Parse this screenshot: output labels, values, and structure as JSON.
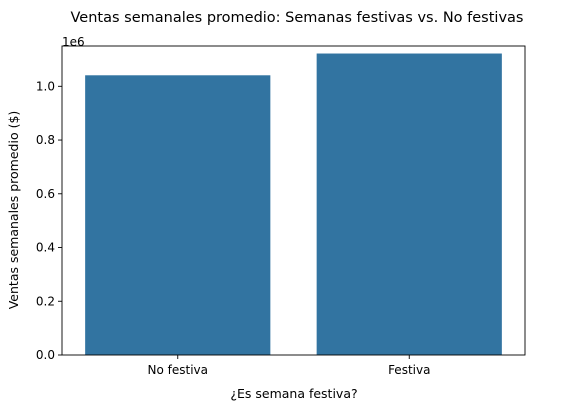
{
  "chart_data": {
    "type": "bar",
    "title": "Ventas semanales promedio: Semanas festivas vs. No festivas",
    "xlabel": "¿Es semana festiva?",
    "ylabel": "Ventas semanales promedio ($)",
    "categories": [
      "No festiva",
      "Festiva"
    ],
    "values": [
      1041000,
      1122000
    ],
    "ylim": [
      0,
      1150000
    ],
    "y_ticks": [
      0,
      200000,
      400000,
      600000,
      800000,
      1000000
    ],
    "y_tick_labels": [
      "0.0",
      "0.2",
      "0.4",
      "0.6",
      "0.8",
      "1.0"
    ],
    "offset_label": "1e6",
    "grid": false,
    "colors": {
      "bar": "#3274a1"
    }
  }
}
